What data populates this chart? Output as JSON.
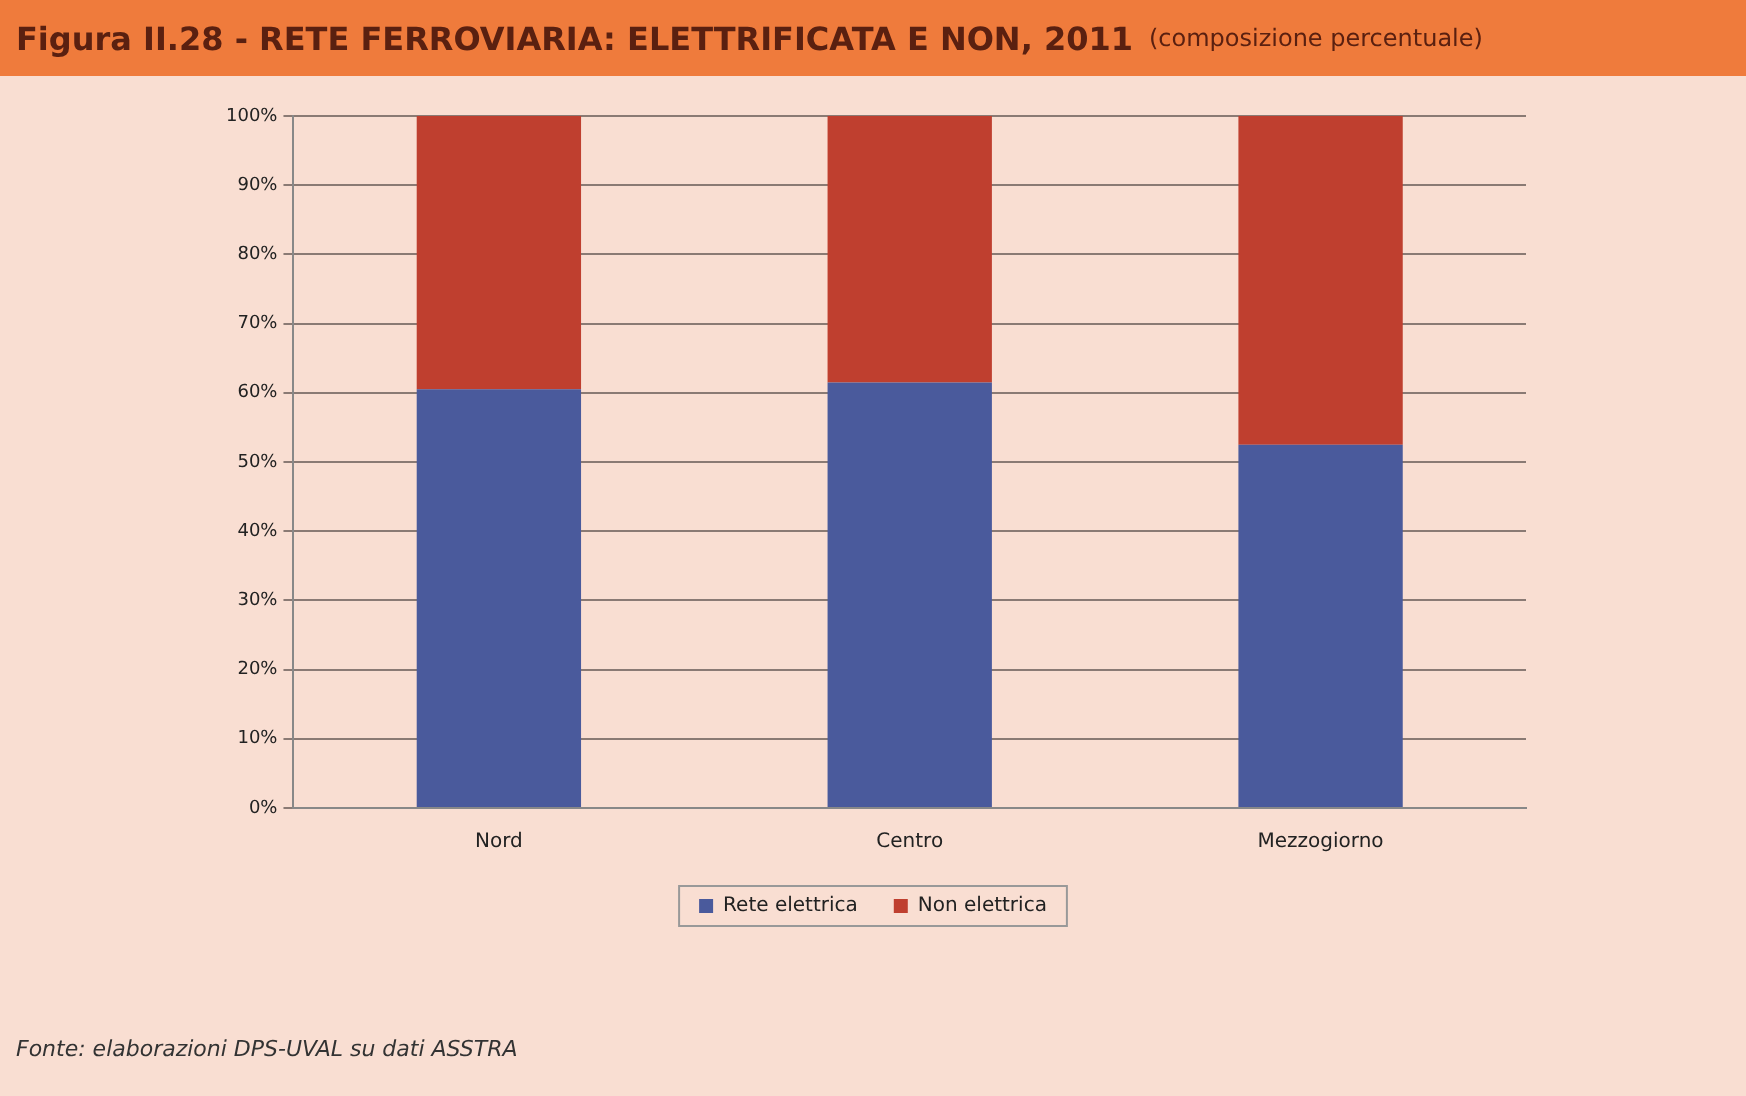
{
  "chart_data": {
    "type": "bar",
    "title": "Figura II.28 -  RETE FERROVIARIA: ELETTRIFICATA E NON, 2011",
    "subtitle": "(composizione percentuale)",
    "categories": [
      "Nord",
      "Centro",
      "Mezzogiorno"
    ],
    "series": [
      {
        "name": "Rete elettrica",
        "color": "#4a5a9c",
        "values": [
          60.5,
          61.5,
          52.5
        ]
      },
      {
        "name": "Non elettrica",
        "color": "#bf3f2f",
        "values": [
          39.5,
          38.5,
          47.5
        ]
      }
    ],
    "stacked": true,
    "ylim": [
      0,
      100
    ],
    "yticks": [
      {
        "value": 0,
        "label": "0%"
      },
      {
        "value": 10,
        "label": "10%"
      },
      {
        "value": 20,
        "label": "20%"
      },
      {
        "value": 30,
        "label": "30%"
      },
      {
        "value": 40,
        "label": "40%"
      },
      {
        "value": 50,
        "label": "50%"
      },
      {
        "value": 60,
        "label": "60%"
      },
      {
        "value": 70,
        "label": "70%"
      },
      {
        "value": 80,
        "label": "80%"
      },
      {
        "value": 90,
        "label": "90%"
      },
      {
        "value": 100,
        "label": "100%"
      }
    ],
    "grid": "y",
    "legend": "bottom",
    "annotations": [
      "Fonte: elaborazioni DPS-UVAL su dati ASSTRA"
    ]
  }
}
